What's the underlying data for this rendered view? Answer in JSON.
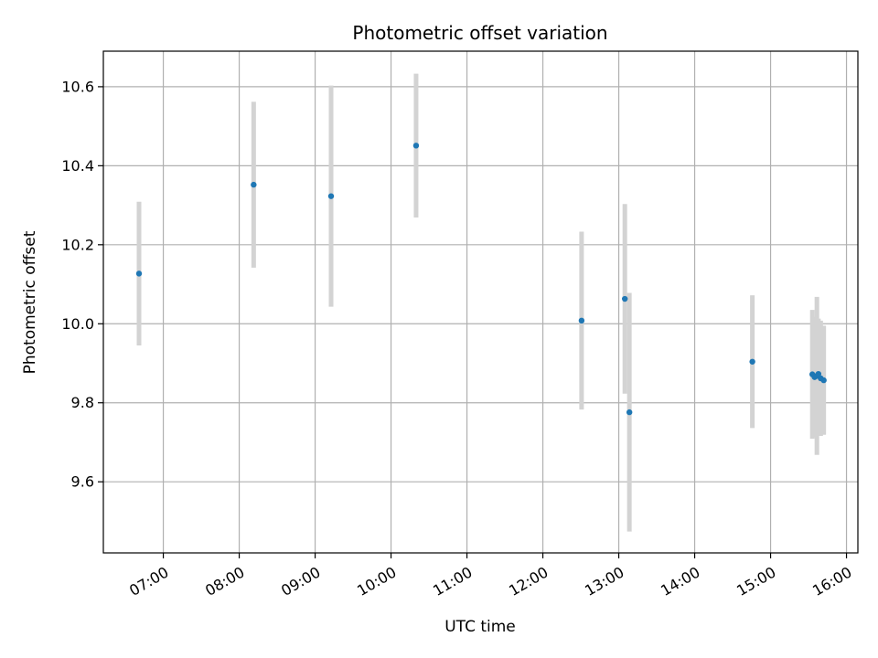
{
  "chart_data": {
    "type": "scatter",
    "title": "Photometric offset variation",
    "xlabel": "UTC time",
    "ylabel": "Photometric offset",
    "x_unit": "hours UTC",
    "xlim": [
      6.21,
      16.15
    ],
    "ylim": [
      9.42,
      10.69
    ],
    "grid": true,
    "x_ticks": [
      {
        "value": 7,
        "label": "07:00"
      },
      {
        "value": 8,
        "label": "08:00"
      },
      {
        "value": 9,
        "label": "09:00"
      },
      {
        "value": 10,
        "label": "10:00"
      },
      {
        "value": 11,
        "label": "11:00"
      },
      {
        "value": 12,
        "label": "12:00"
      },
      {
        "value": 13,
        "label": "13:00"
      },
      {
        "value": 14,
        "label": "14:00"
      },
      {
        "value": 15,
        "label": "15:00"
      },
      {
        "value": 16,
        "label": "16:00"
      }
    ],
    "y_ticks": [
      {
        "value": 9.6,
        "label": "9.6"
      },
      {
        "value": 9.8,
        "label": "9.8"
      },
      {
        "value": 10.0,
        "label": "10.0"
      },
      {
        "value": 10.2,
        "label": "10.2"
      },
      {
        "value": 10.4,
        "label": "10.4"
      },
      {
        "value": 10.6,
        "label": "10.6"
      }
    ],
    "series": [
      {
        "marker_color": "#1f77b4",
        "errorbar_color": "#d3d3d3",
        "points": [
          {
            "x": 6.68,
            "y": 10.127,
            "err": 0.182
          },
          {
            "x": 8.19,
            "y": 10.352,
            "err": 0.21
          },
          {
            "x": 9.21,
            "y": 10.323,
            "err": 0.28
          },
          {
            "x": 10.33,
            "y": 10.451,
            "err": 0.182
          },
          {
            "x": 12.51,
            "y": 10.008,
            "err": 0.225
          },
          {
            "x": 13.08,
            "y": 10.063,
            "err": 0.24
          },
          {
            "x": 13.14,
            "y": 9.776,
            "err": 0.302
          },
          {
            "x": 14.76,
            "y": 9.904,
            "err": 0.168
          },
          {
            "x": 15.55,
            "y": 9.872,
            "err": 0.163
          },
          {
            "x": 15.58,
            "y": 9.865,
            "err": 0.152
          },
          {
            "x": 15.61,
            "y": 9.868,
            "err": 0.2
          },
          {
            "x": 15.63,
            "y": 9.873,
            "err": 0.14
          },
          {
            "x": 15.66,
            "y": 9.862,
            "err": 0.146
          },
          {
            "x": 15.7,
            "y": 9.857,
            "err": 0.138
          }
        ]
      }
    ]
  }
}
